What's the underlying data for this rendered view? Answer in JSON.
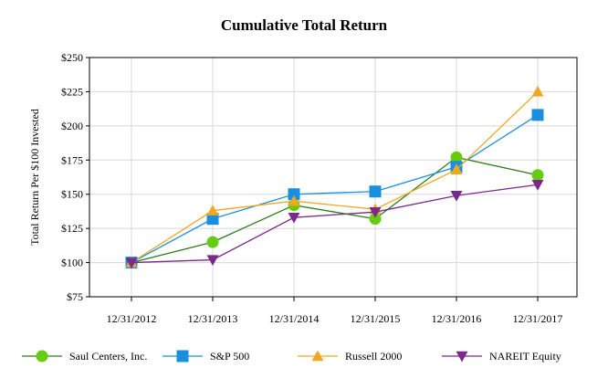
{
  "chart_data": {
    "type": "line",
    "title": "Cumulative Total Return",
    "xlabel": "",
    "ylabel": "Total Return Per $100 Invested",
    "categories": [
      "12/31/2012",
      "12/31/2013",
      "12/31/2014",
      "12/31/2015",
      "12/31/2016",
      "12/31/2017"
    ],
    "ylim": [
      75,
      250
    ],
    "yticks": [
      75,
      100,
      125,
      150,
      175,
      200,
      225,
      250
    ],
    "ytick_labels": [
      "$75",
      "$100",
      "$125",
      "$150",
      "$175",
      "$200",
      "$225",
      "$250"
    ],
    "grid": true,
    "legend_position": "bottom",
    "series": [
      {
        "name": "Saul Centers, Inc.",
        "color": "#2e7d1e",
        "marker_color": "#66cc11",
        "marker": "circle",
        "values": [
          100,
          115,
          142,
          132,
          177,
          164
        ]
      },
      {
        "name": "S&P 500",
        "color": "#1a8fe0",
        "marker_color": "#1a8fe0",
        "marker": "square",
        "values": [
          100,
          132,
          150,
          152,
          170,
          208
        ]
      },
      {
        "name": "Russell 2000",
        "color": "#f0a820",
        "marker_color": "#f0a820",
        "marker": "triangle-up",
        "values": [
          100,
          138,
          145,
          139,
          168,
          225
        ]
      },
      {
        "name": "NAREIT Equity",
        "color": "#7a2a8a",
        "marker_color": "#7a2a8a",
        "marker": "triangle-down",
        "values": [
          100,
          102,
          133,
          137,
          149,
          157
        ]
      }
    ]
  }
}
